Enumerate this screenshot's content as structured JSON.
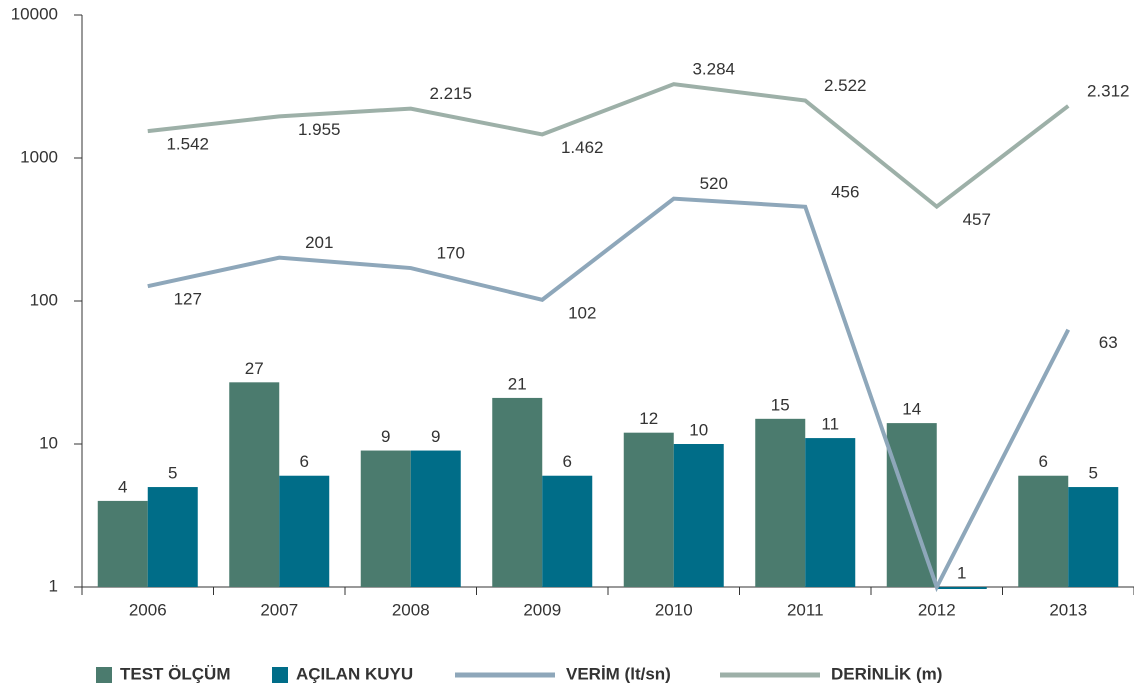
{
  "chart_data": {
    "type": "bar",
    "log_scale": true,
    "categories": [
      "2006",
      "2007",
      "2008",
      "2009",
      "2010",
      "2011",
      "2012",
      "2013"
    ],
    "ylim": [
      1,
      10000
    ],
    "yticks": [
      1,
      10,
      100,
      1000,
      10000
    ],
    "series": [
      {
        "name": "TEST ÖLÇÜM",
        "type": "bar",
        "color": "#4b7b6e",
        "values": [
          4,
          27,
          9,
          21,
          12,
          15,
          14,
          6
        ]
      },
      {
        "name": "AÇILAN KUYU",
        "type": "bar",
        "color": "#006d88",
        "values": [
          5,
          6,
          9,
          6,
          10,
          11,
          1,
          5
        ]
      },
      {
        "name": "VERİM (lt/sn)",
        "type": "line",
        "color": "#8ea7ba",
        "values": [
          127,
          201,
          170,
          102,
          520,
          456,
          1,
          63
        ],
        "value_labels": [
          "127",
          "201",
          "170",
          "102",
          "520",
          "456",
          null,
          "63"
        ]
      },
      {
        "name": "DERİNLİK (m)",
        "type": "line",
        "color": "#9db0a8",
        "values": [
          1542,
          1955,
          2215,
          1462,
          3284,
          2522,
          457,
          2312
        ],
        "value_labels": [
          "1.542",
          "1.955",
          "2.215",
          "1.462",
          "3.284",
          "2.522",
          "457",
          "2.312"
        ]
      }
    ]
  }
}
